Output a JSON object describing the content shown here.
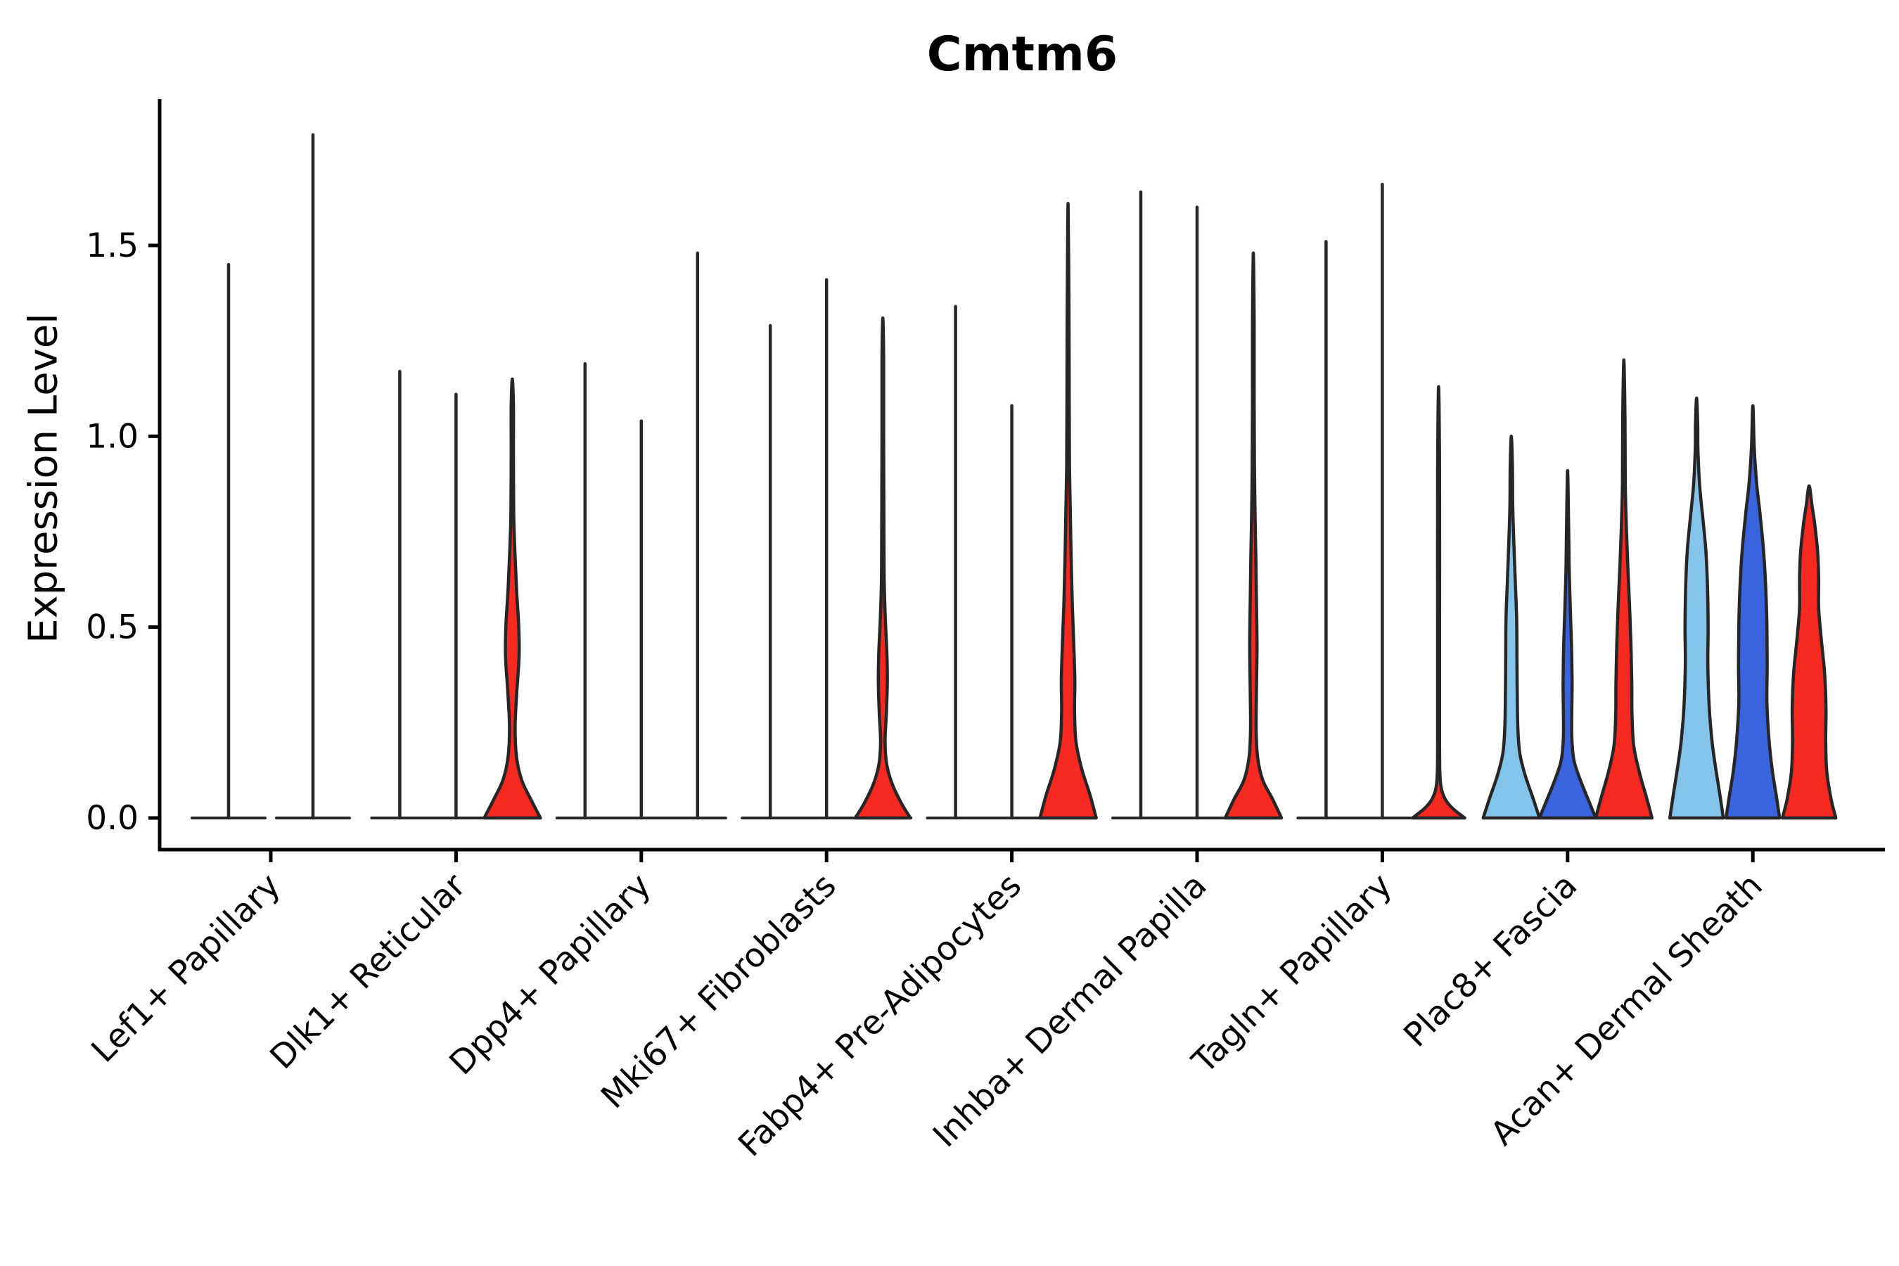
{
  "title": "Cmtm6",
  "colors": {
    "light_blue": "#85C4EA",
    "dark_blue": "#3A63DE",
    "red": "#F5291F",
    "outline": "#262626",
    "axis": "#000000",
    "background": "#FFFFFF"
  },
  "chart_data": {
    "type": "violin",
    "title": "Cmtm6",
    "ylabel": "Expression Level",
    "xlabel": "",
    "ylim": [
      -0.08,
      1.88
    ],
    "yticks": [
      0.0,
      0.5,
      1.0,
      1.5
    ],
    "ytick_labels": [
      "0.0",
      "0.5",
      "1.0",
      "1.5"
    ],
    "grid": false,
    "legend": null,
    "categories": [
      "Lef1+ Papillary",
      "Dlk1+ Reticular",
      "Dpp4+ Papillary",
      "Mki67+ Fibroblasts",
      "Fabp4+ Pre-Adipocytes",
      "Inhba+ Dermal Papilla",
      "Tagln+ Papillary",
      "Plac8+ Fascia",
      "Acan+ Dermal Sheath"
    ],
    "groups": [
      {
        "category": "Lef1+ Papillary",
        "violins": [
          {
            "style": "spike",
            "color": null,
            "max": 1.45,
            "base_halfwidth": 1.3
          },
          {
            "style": "spike",
            "color": null,
            "max": 1.79,
            "base_halfwidth": 1.3
          }
        ]
      },
      {
        "category": "Dlk1+ Reticular",
        "violins": [
          {
            "style": "spike",
            "color": null,
            "max": 1.17,
            "base_halfwidth": 1.0
          },
          {
            "style": "spike",
            "color": null,
            "max": 1.11,
            "base_halfwidth": 1.0
          },
          {
            "style": "violin",
            "color": "red",
            "max": 1.15,
            "base_halfwidth": 1.0,
            "profile": [
              [
                0,
                1.0
              ],
              [
                0.05,
                0.65
              ],
              [
                0.1,
                0.33
              ],
              [
                0.16,
                0.15
              ],
              [
                0.24,
                0.1
              ],
              [
                0.33,
                0.16
              ],
              [
                0.42,
                0.24
              ],
              [
                0.5,
                0.23
              ],
              [
                0.6,
                0.15
              ],
              [
                0.7,
                0.09
              ],
              [
                0.8,
                0.05
              ],
              [
                0.95,
                0.04
              ],
              [
                1.08,
                0.04
              ]
            ]
          }
        ]
      },
      {
        "category": "Dpp4+ Papillary",
        "violins": [
          {
            "style": "spike",
            "color": null,
            "max": 1.19,
            "base_halfwidth": 1.0
          },
          {
            "style": "spike",
            "color": null,
            "max": 1.04,
            "base_halfwidth": 1.0
          },
          {
            "style": "spike",
            "color": null,
            "max": 1.48,
            "base_halfwidth": 1.0
          }
        ]
      },
      {
        "category": "Mki67+ Fibroblasts",
        "violins": [
          {
            "style": "spike",
            "color": null,
            "max": 1.29,
            "base_halfwidth": 1.0
          },
          {
            "style": "spike",
            "color": null,
            "max": 1.41,
            "base_halfwidth": 1.0
          },
          {
            "style": "violin",
            "color": "red",
            "max": 1.31,
            "base_halfwidth": 1.0,
            "profile": [
              [
                0,
                0.98
              ],
              [
                0.04,
                0.65
              ],
              [
                0.09,
                0.33
              ],
              [
                0.14,
                0.14
              ],
              [
                0.2,
                0.08
              ],
              [
                0.28,
                0.13
              ],
              [
                0.36,
                0.16
              ],
              [
                0.44,
                0.14
              ],
              [
                0.52,
                0.09
              ],
              [
                0.62,
                0.05
              ],
              [
                0.75,
                0.04
              ],
              [
                1.0,
                0.03
              ],
              [
                1.2,
                0.03
              ]
            ]
          }
        ]
      },
      {
        "category": "Fabp4+ Pre-Adipocytes",
        "violins": [
          {
            "style": "spike",
            "color": null,
            "max": 1.34,
            "base_halfwidth": 1.0
          },
          {
            "style": "spike",
            "color": null,
            "max": 1.08,
            "base_halfwidth": 1.0
          },
          {
            "style": "violin",
            "color": "red",
            "max": 1.61,
            "base_halfwidth": 1.0,
            "profile": [
              [
                0,
                1.0
              ],
              [
                0.06,
                0.78
              ],
              [
                0.13,
                0.48
              ],
              [
                0.2,
                0.28
              ],
              [
                0.28,
                0.23
              ],
              [
                0.36,
                0.24
              ],
              [
                0.46,
                0.2
              ],
              [
                0.56,
                0.15
              ],
              [
                0.68,
                0.11
              ],
              [
                0.8,
                0.08
              ],
              [
                0.92,
                0.05
              ],
              [
                1.1,
                0.04
              ],
              [
                1.35,
                0.03
              ]
            ]
          }
        ]
      },
      {
        "category": "Inhba+ Dermal Papilla",
        "violins": [
          {
            "style": "spike",
            "color": null,
            "max": 1.64,
            "base_halfwidth": 1.0
          },
          {
            "style": "spike",
            "color": null,
            "max": 1.6,
            "base_halfwidth": 1.0
          },
          {
            "style": "violin",
            "color": "red",
            "max": 1.48,
            "base_halfwidth": 1.0,
            "profile": [
              [
                0,
                1.0
              ],
              [
                0.05,
                0.68
              ],
              [
                0.1,
                0.33
              ],
              [
                0.16,
                0.15
              ],
              [
                0.23,
                0.1
              ],
              [
                0.33,
                0.11
              ],
              [
                0.45,
                0.13
              ],
              [
                0.57,
                0.11
              ],
              [
                0.68,
                0.09
              ],
              [
                0.8,
                0.06
              ],
              [
                0.92,
                0.04
              ],
              [
                1.1,
                0.03
              ],
              [
                1.3,
                0.03
              ]
            ]
          }
        ]
      },
      {
        "category": "Tagln+ Papillary",
        "violins": [
          {
            "style": "spike",
            "color": null,
            "max": 1.51,
            "base_halfwidth": 1.0
          },
          {
            "style": "spike",
            "color": null,
            "max": 1.66,
            "base_halfwidth": 1.0
          },
          {
            "style": "violin",
            "color": "red",
            "max": 1.13,
            "base_halfwidth": 0.93,
            "profile": [
              [
                0,
                0.93
              ],
              [
                0.025,
                0.5
              ],
              [
                0.05,
                0.23
              ],
              [
                0.08,
                0.09
              ],
              [
                0.12,
                0.045
              ],
              [
                0.2,
                0.035
              ],
              [
                0.5,
                0.035
              ],
              [
                0.9,
                0.035
              ]
            ]
          }
        ]
      },
      {
        "category": "Plac8+ Fascia",
        "violins": [
          {
            "style": "violin",
            "color": "light_blue",
            "max": 1.0,
            "base_halfwidth": 1.0,
            "profile": [
              [
                0,
                1.0
              ],
              [
                0.05,
                0.78
              ],
              [
                0.11,
                0.5
              ],
              [
                0.17,
                0.3
              ],
              [
                0.24,
                0.23
              ],
              [
                0.33,
                0.21
              ],
              [
                0.42,
                0.2
              ],
              [
                0.52,
                0.19
              ],
              [
                0.62,
                0.14
              ],
              [
                0.72,
                0.09
              ],
              [
                0.82,
                0.05
              ],
              [
                0.92,
                0.04
              ]
            ]
          },
          {
            "style": "violin",
            "color": "dark_blue",
            "max": 0.91,
            "base_halfwidth": 1.0,
            "profile": [
              [
                0,
                1.0
              ],
              [
                0.045,
                0.75
              ],
              [
                0.1,
                0.45
              ],
              [
                0.15,
                0.23
              ],
              [
                0.21,
                0.15
              ],
              [
                0.28,
                0.15
              ],
              [
                0.36,
                0.16
              ],
              [
                0.45,
                0.14
              ],
              [
                0.54,
                0.1
              ],
              [
                0.64,
                0.06
              ],
              [
                0.75,
                0.04
              ]
            ]
          },
          {
            "style": "violin",
            "color": "red",
            "max": 1.2,
            "base_halfwidth": 1.0,
            "profile": [
              [
                0,
                1.0
              ],
              [
                0.055,
                0.8
              ],
              [
                0.12,
                0.55
              ],
              [
                0.19,
                0.35
              ],
              [
                0.27,
                0.29
              ],
              [
                0.36,
                0.28
              ],
              [
                0.46,
                0.25
              ],
              [
                0.56,
                0.2
              ],
              [
                0.66,
                0.14
              ],
              [
                0.76,
                0.09
              ],
              [
                0.88,
                0.05
              ],
              [
                1.05,
                0.04
              ]
            ]
          }
        ]
      },
      {
        "category": "Acan+ Dermal Sheath",
        "violins": [
          {
            "style": "violin",
            "color": "light_blue",
            "max": 1.1,
            "base_halfwidth": 0.95,
            "profile": [
              [
                0,
                0.95
              ],
              [
                0.06,
                0.83
              ],
              [
                0.13,
                0.68
              ],
              [
                0.2,
                0.55
              ],
              [
                0.29,
                0.45
              ],
              [
                0.4,
                0.4
              ],
              [
                0.5,
                0.41
              ],
              [
                0.6,
                0.39
              ],
              [
                0.7,
                0.33
              ],
              [
                0.78,
                0.23
              ],
              [
                0.87,
                0.11
              ],
              [
                0.96,
                0.05
              ],
              [
                1.03,
                0.04
              ]
            ]
          },
          {
            "style": "violin",
            "color": "dark_blue",
            "max": 1.08,
            "base_halfwidth": 0.95,
            "profile": [
              [
                0,
                0.95
              ],
              [
                0.06,
                0.83
              ],
              [
                0.12,
                0.7
              ],
              [
                0.2,
                0.58
              ],
              [
                0.3,
                0.5
              ],
              [
                0.4,
                0.51
              ],
              [
                0.5,
                0.5
              ],
              [
                0.6,
                0.46
              ],
              [
                0.7,
                0.38
              ],
              [
                0.8,
                0.25
              ],
              [
                0.88,
                0.13
              ],
              [
                0.97,
                0.05
              ]
            ]
          },
          {
            "style": "violin",
            "color": "red",
            "max": 0.87,
            "base_halfwidth": 0.95,
            "profile": [
              [
                0,
                0.95
              ],
              [
                0.05,
                0.78
              ],
              [
                0.12,
                0.63
              ],
              [
                0.2,
                0.59
              ],
              [
                0.29,
                0.6
              ],
              [
                0.38,
                0.55
              ],
              [
                0.47,
                0.43
              ],
              [
                0.55,
                0.34
              ],
              [
                0.63,
                0.34
              ],
              [
                0.7,
                0.3
              ],
              [
                0.77,
                0.2
              ],
              [
                0.82,
                0.1
              ]
            ]
          }
        ]
      }
    ]
  }
}
